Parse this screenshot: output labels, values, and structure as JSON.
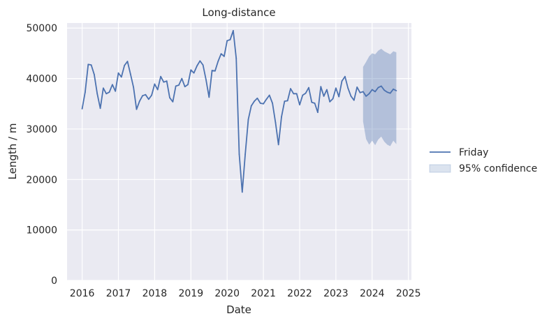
{
  "chart_data": {
    "type": "line",
    "title": "Long-distance",
    "xlabel": "Date",
    "ylabel": "Length / m",
    "xlim": [
      "2015-08-01",
      "2025-02-01"
    ],
    "ylim": [
      0,
      51000
    ],
    "x_ticks": [
      "2016",
      "2017",
      "2018",
      "2019",
      "2020",
      "2021",
      "2022",
      "2023",
      "2024",
      "2025"
    ],
    "y_ticks": [
      0,
      10000,
      20000,
      30000,
      40000,
      50000
    ],
    "grid": true,
    "legend": "right",
    "series": [
      {
        "name": "Friday",
        "color": "#4c72b0",
        "points": [
          [
            "2016-01",
            34000
          ],
          [
            "2016-02",
            37300
          ],
          [
            "2016-03",
            42800
          ],
          [
            "2016-04",
            42700
          ],
          [
            "2016-05",
            40800
          ],
          [
            "2016-06",
            37000
          ],
          [
            "2016-07",
            34100
          ],
          [
            "2016-08",
            38100
          ],
          [
            "2016-09",
            37000
          ],
          [
            "2016-10",
            37300
          ],
          [
            "2016-11",
            38800
          ],
          [
            "2016-12",
            37500
          ],
          [
            "2017-01",
            41100
          ],
          [
            "2017-02",
            40300
          ],
          [
            "2017-03",
            42600
          ],
          [
            "2017-04",
            43400
          ],
          [
            "2017-05",
            40900
          ],
          [
            "2017-06",
            38300
          ],
          [
            "2017-07",
            33900
          ],
          [
            "2017-08",
            35500
          ],
          [
            "2017-09",
            36600
          ],
          [
            "2017-10",
            36800
          ],
          [
            "2017-11",
            35900
          ],
          [
            "2017-12",
            36700
          ],
          [
            "2018-01",
            38900
          ],
          [
            "2018-02",
            37800
          ],
          [
            "2018-03",
            40400
          ],
          [
            "2018-04",
            39300
          ],
          [
            "2018-05",
            39500
          ],
          [
            "2018-06",
            36200
          ],
          [
            "2018-07",
            35400
          ],
          [
            "2018-08",
            38500
          ],
          [
            "2018-09",
            38700
          ],
          [
            "2018-10",
            40000
          ],
          [
            "2018-11",
            38400
          ],
          [
            "2018-12",
            38800
          ],
          [
            "2019-01",
            41700
          ],
          [
            "2019-02",
            41100
          ],
          [
            "2019-03",
            42500
          ],
          [
            "2019-04",
            43500
          ],
          [
            "2019-05",
            42700
          ],
          [
            "2019-06",
            39800
          ],
          [
            "2019-07",
            36300
          ],
          [
            "2019-08",
            41600
          ],
          [
            "2019-09",
            41500
          ],
          [
            "2019-10",
            43400
          ],
          [
            "2019-11",
            44900
          ],
          [
            "2019-12",
            44400
          ],
          [
            "2020-01",
            47500
          ],
          [
            "2020-02",
            47700
          ],
          [
            "2020-03",
            49500
          ],
          [
            "2020-04",
            44000
          ],
          [
            "2020-05",
            25000
          ],
          [
            "2020-06",
            17500
          ],
          [
            "2020-07",
            25000
          ],
          [
            "2020-08",
            31900
          ],
          [
            "2020-09",
            34600
          ],
          [
            "2020-10",
            35500
          ],
          [
            "2020-11",
            36100
          ],
          [
            "2020-12",
            35100
          ],
          [
            "2021-01",
            35000
          ],
          [
            "2021-02",
            35900
          ],
          [
            "2021-03",
            36700
          ],
          [
            "2021-04",
            35100
          ],
          [
            "2021-05",
            31300
          ],
          [
            "2021-06",
            26900
          ],
          [
            "2021-07",
            32400
          ],
          [
            "2021-08",
            35500
          ],
          [
            "2021-09",
            35600
          ],
          [
            "2021-10",
            38000
          ],
          [
            "2021-11",
            37000
          ],
          [
            "2021-12",
            37000
          ],
          [
            "2022-01",
            34800
          ],
          [
            "2022-02",
            36700
          ],
          [
            "2022-03",
            37100
          ],
          [
            "2022-04",
            38200
          ],
          [
            "2022-05",
            35300
          ],
          [
            "2022-06",
            35100
          ],
          [
            "2022-07",
            33300
          ],
          [
            "2022-08",
            38400
          ],
          [
            "2022-09",
            36500
          ],
          [
            "2022-10",
            37800
          ],
          [
            "2022-11",
            35400
          ],
          [
            "2022-12",
            36000
          ],
          [
            "2023-01",
            38100
          ],
          [
            "2023-02",
            36400
          ],
          [
            "2023-03",
            39500
          ],
          [
            "2023-04",
            40400
          ],
          [
            "2023-05",
            38100
          ],
          [
            "2023-06",
            36500
          ],
          [
            "2023-07",
            35700
          ],
          [
            "2023-08",
            38300
          ],
          [
            "2023-09",
            37200
          ],
          [
            "2023-10",
            37400
          ],
          [
            "2023-11",
            36500
          ],
          [
            "2023-12",
            37000
          ],
          [
            "2024-01",
            37800
          ],
          [
            "2024-02",
            37400
          ],
          [
            "2024-03",
            38200
          ],
          [
            "2024-04",
            38500
          ],
          [
            "2024-05",
            37700
          ],
          [
            "2024-06",
            37300
          ],
          [
            "2024-07",
            37100
          ],
          [
            "2024-08",
            37900
          ],
          [
            "2024-09",
            37600
          ]
        ]
      }
    ],
    "confidence_band": {
      "name": "95% confidence",
      "color": "#4c72b0",
      "points": [
        [
          "2023-10",
          31500,
          42300
        ],
        [
          "2023-11",
          28000,
          43300
        ],
        [
          "2023-12",
          26900,
          44400
        ],
        [
          "2024-01",
          27700,
          45000
        ],
        [
          "2024-02",
          26800,
          44800
        ],
        [
          "2024-03",
          27900,
          45500
        ],
        [
          "2024-04",
          28500,
          45900
        ],
        [
          "2024-05",
          27500,
          45400
        ],
        [
          "2024-06",
          26900,
          45100
        ],
        [
          "2024-07",
          26600,
          44800
        ],
        [
          "2024-08",
          27700,
          45400
        ],
        [
          "2024-09",
          27000,
          45200
        ]
      ]
    }
  }
}
